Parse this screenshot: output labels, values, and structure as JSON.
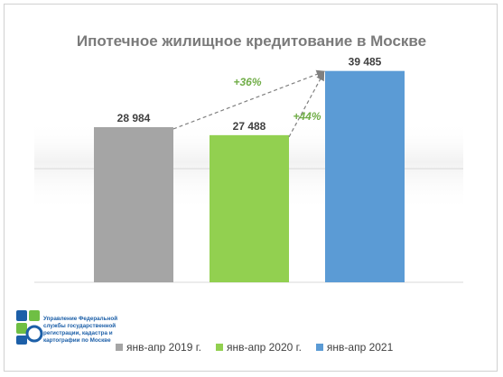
{
  "chart_data": {
    "type": "bar",
    "title": "Ипотечное жилищное кредитование в Москве",
    "categories": [
      "янв-апр 2019 г.",
      "янв-апр 2020 г.",
      "янв-апр 2021"
    ],
    "values": [
      28984,
      27488,
      39485
    ],
    "value_labels": [
      "28 984",
      "27 488",
      "39 485"
    ],
    "colors": [
      "#a5a5a5",
      "#92d050",
      "#5b9bd5"
    ],
    "annotations": [
      {
        "text": "+36%",
        "color": "#70ad47",
        "from_category": 0,
        "to_category": 2
      },
      {
        "text": "+44%",
        "color": "#70ad47",
        "from_category": 1,
        "to_category": 2
      }
    ],
    "xlabel": "",
    "ylabel": "",
    "ylim": [
      0,
      46000
    ],
    "grid": false,
    "legend": "bottom"
  },
  "logo": {
    "text": "Управление Федеральной службы государственной регистрации, кадастра и картографии по Москве"
  }
}
